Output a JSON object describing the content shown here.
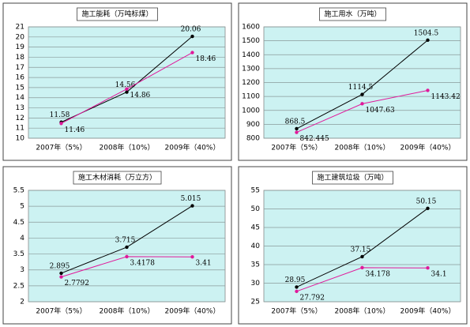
{
  "chart_data": [
    {
      "type": "line",
      "title": "施工能耗（万吨标煤）",
      "categories": [
        "2007年（5%）",
        "2008年（10%）",
        "2009年（40%）"
      ],
      "series": [
        {
          "color": "#000000",
          "values": [
            11.58,
            14.56,
            20.06
          ]
        },
        {
          "color": "#e0199a",
          "values": [
            11.46,
            14.86,
            18.46
          ]
        }
      ],
      "ylim": [
        10,
        21
      ],
      "yticks": [
        10,
        11,
        12,
        13,
        14,
        15,
        16,
        17,
        18,
        19,
        20,
        21
      ],
      "grid": true
    },
    {
      "type": "line",
      "title": "施工用水（万吨）",
      "categories": [
        "2007年（5%）",
        "2008年（10%）",
        "2009年（40%）"
      ],
      "series": [
        {
          "color": "#000000",
          "values": [
            868.5,
            1114.5,
            1504.5
          ]
        },
        {
          "color": "#e0199a",
          "values": [
            842.445,
            1047.63,
            1143.42
          ]
        }
      ],
      "ylim": [
        800,
        1600
      ],
      "yticks": [
        800,
        900,
        1000,
        1100,
        1200,
        1300,
        1400,
        1500,
        1600
      ],
      "grid": true
    },
    {
      "type": "line",
      "title": "施工木材消耗（万立方）",
      "categories": [
        "2007年（5%）",
        "2008年（10%）",
        "2009年（40%）"
      ],
      "series": [
        {
          "color": "#000000",
          "values": [
            2.895,
            3.715,
            5.015
          ]
        },
        {
          "color": "#e0199a",
          "values": [
            2.7792,
            3.4178,
            3.41
          ]
        }
      ],
      "ylim": [
        2,
        5.5
      ],
      "yticks": [
        2,
        2.5,
        3,
        3.5,
        4,
        4.5,
        5,
        5.5
      ],
      "grid": true
    },
    {
      "type": "line",
      "title": "施工建筑垃圾（万吨）",
      "categories": [
        "2007年（5%）",
        "2008年（10%）",
        "2009年（40%）"
      ],
      "series": [
        {
          "color": "#000000",
          "values": [
            28.95,
            37.15,
            50.15
          ]
        },
        {
          "color": "#e0199a",
          "values": [
            27.792,
            34.178,
            34.1
          ]
        }
      ],
      "ylim": [
        25,
        55
      ],
      "yticks": [
        25,
        30,
        35,
        40,
        45,
        50,
        55
      ],
      "grid": true
    }
  ]
}
